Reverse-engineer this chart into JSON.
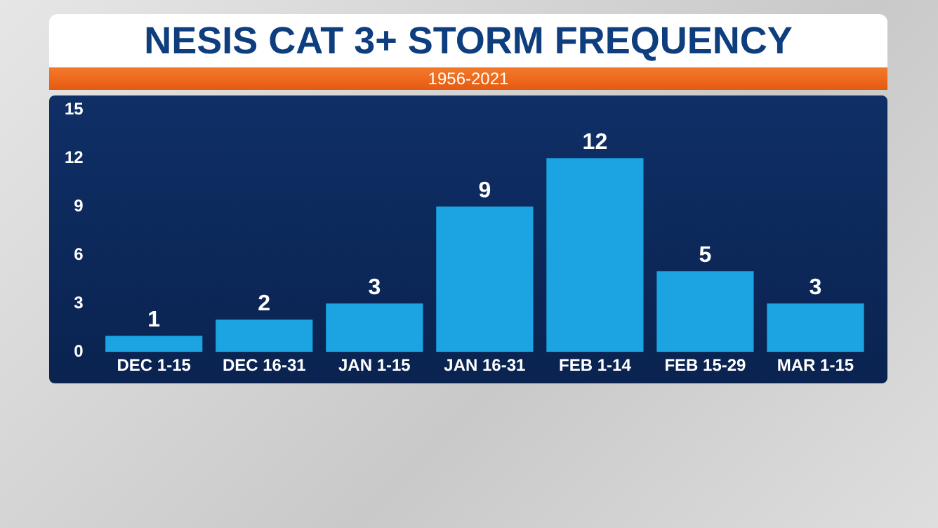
{
  "chart_data": {
    "type": "bar",
    "title": "NESIS CAT 3+ STORM FREQUENCY",
    "subtitle": "1956-2021",
    "categories": [
      "DEC 1-15",
      "DEC 16-31",
      "JAN 1-15",
      "JAN 16-31",
      "FEB 1-14",
      "FEB 15-29",
      "MAR 1-15"
    ],
    "values": [
      1,
      2,
      3,
      9,
      12,
      5,
      3
    ],
    "color": "#1ba3e2",
    "ylim": [
      0,
      15
    ],
    "yticks": [
      0,
      3,
      6,
      9,
      12,
      15
    ],
    "data_labels": true
  }
}
